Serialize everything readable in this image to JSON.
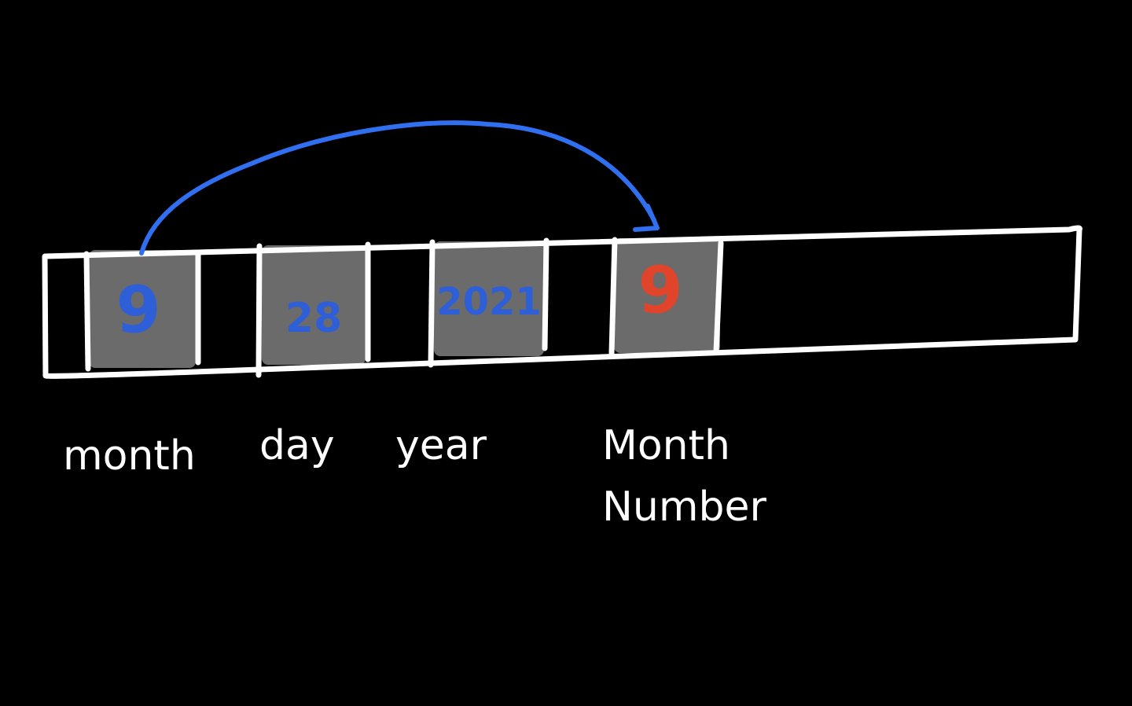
{
  "colors": {
    "background": "#000000",
    "outline": "#ffffff",
    "cell_fill": "#6b6b6b",
    "source_value": "#2f5fd6",
    "copied_value": "#e0452b",
    "arrow": "#2f6ff0"
  },
  "cells": [
    {
      "value": "9",
      "color": "#2f5fd6"
    },
    {
      "value": "28",
      "color": "#2f5fd6"
    },
    {
      "value": "2021",
      "color": "#2f5fd6"
    },
    {
      "value": "9",
      "color": "#e0452b"
    }
  ],
  "labels": {
    "month": "month",
    "day": "day",
    "year": "year",
    "month_number_line1": "Month",
    "month_number_line2": "Number"
  }
}
